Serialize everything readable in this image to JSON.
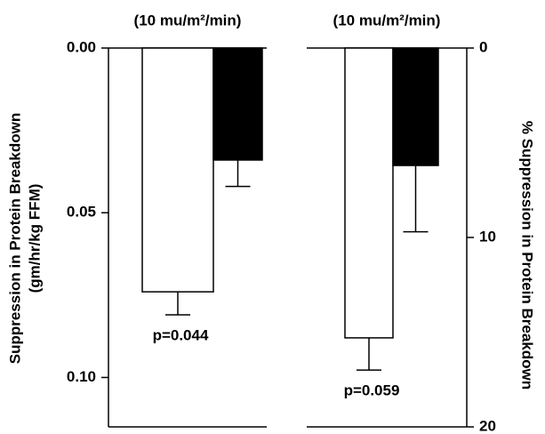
{
  "chart_data": [
    {
      "type": "bar",
      "title": "(10 mu/m²/min)",
      "y_label": [
        "Suppression in Protein Breakdown",
        "(gm/hr/kg FFM)"
      ],
      "y_axis_side": "left",
      "inverted": true,
      "ylim": [
        0,
        0.115
      ],
      "yticks": [
        {
          "value": 0,
          "label": "0.00"
        },
        0.05,
        {
          "value": 0.1,
          "label": "0.10"
        }
      ],
      "series": [
        {
          "color": "#ffffff",
          "values": [
            0.074
          ],
          "errors": [
            0.007
          ]
        },
        {
          "color": "#000000",
          "values": [
            0.034
          ],
          "errors": [
            0.008
          ]
        }
      ],
      "annotation": "p=0.044"
    },
    {
      "type": "bar",
      "title": "(10 mu/m²/min)",
      "y_label": [
        "% Suppression in Protein Breakdown"
      ],
      "y_axis_side": "right",
      "inverted": true,
      "ylim": [
        0,
        20
      ],
      "yticks": [
        0,
        10,
        20
      ],
      "series": [
        {
          "color": "#ffffff",
          "values": [
            15.3
          ],
          "errors": [
            1.7
          ]
        },
        {
          "color": "#000000",
          "values": [
            6.2
          ],
          "errors": [
            3.5
          ]
        }
      ],
      "annotation": "p=0.059"
    }
  ]
}
